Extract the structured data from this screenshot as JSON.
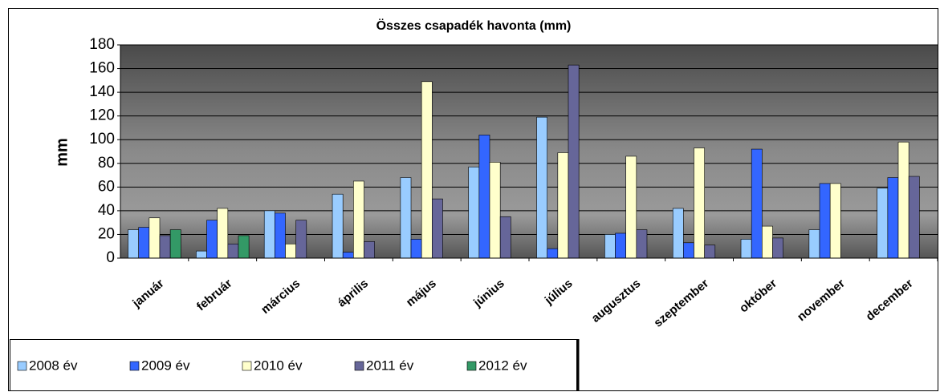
{
  "chart_data": {
    "type": "bar",
    "title": "Összes csapadék havonta (mm)",
    "y_label": "mm",
    "categories": [
      "január",
      "február",
      "március",
      "április",
      "május",
      "június",
      "július",
      "augusztus",
      "szeptember",
      "október",
      "november",
      "december"
    ],
    "series": [
      {
        "name": "2008 év",
        "color": "#99ccff",
        "values": [
          24,
          6,
          40,
          54,
          68,
          77,
          119,
          20,
          42,
          16,
          24,
          59
        ]
      },
      {
        "name": "2009 év",
        "color": "#3366ff",
        "values": [
          26,
          32,
          38,
          5,
          16,
          104,
          8,
          21,
          13,
          92,
          63,
          68
        ]
      },
      {
        "name": "2010 év",
        "color": "#ffffcc",
        "values": [
          34,
          42,
          12,
          65,
          149,
          81,
          89,
          86,
          93,
          27,
          63,
          98
        ]
      },
      {
        "name": "2011 év",
        "color": "#666699",
        "values": [
          19,
          12,
          32,
          14,
          50,
          35,
          163,
          24,
          11,
          17,
          null,
          69
        ]
      },
      {
        "name": "2012 év",
        "color": "#339966",
        "values": [
          24,
          19,
          null,
          null,
          null,
          null,
          null,
          null,
          null,
          null,
          null,
          null
        ]
      }
    ],
    "ylim": [
      0,
      180
    ],
    "yticks": [
      0,
      20,
      40,
      60,
      80,
      100,
      120,
      140,
      160,
      180
    ],
    "grid": true
  }
}
